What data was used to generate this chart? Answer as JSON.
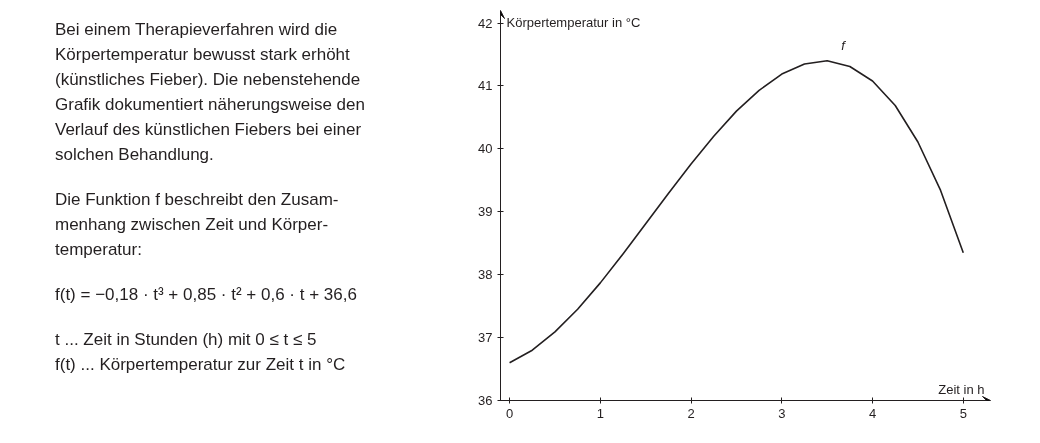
{
  "chart_data": {
    "type": "line",
    "xlabel": "Zeit in h",
    "ylabel": "Körpertemperatur in °C",
    "x": [
      0,
      0.25,
      0.5,
      0.75,
      1,
      1.25,
      1.5,
      1.75,
      2,
      2.25,
      2.5,
      2.75,
      3,
      3.25,
      3.5,
      3.75,
      4,
      4.25,
      4.5,
      4.75,
      5
    ],
    "series": [
      {
        "name": "f",
        "color": "#231f20",
        "values": [
          36.6,
          36.8,
          37.09,
          37.45,
          37.87,
          38.33,
          38.81,
          39.29,
          39.76,
          40.2,
          40.6,
          40.93,
          41.19,
          41.35,
          41.4,
          41.31,
          41.08,
          40.69,
          40.11,
          39.34,
          38.35
        ]
      }
    ],
    "xlim": [
      -0.1,
      5.3
    ],
    "ylim": [
      36,
      42.2
    ],
    "xticks": [
      0,
      1,
      2,
      3,
      4,
      5
    ],
    "yticks": [
      36,
      37,
      38,
      39,
      40,
      41,
      42
    ],
    "grid": false,
    "marker": "none",
    "line_style": "solid",
    "annotations": [
      "Bei einem Therapieverfahren wird die\nKörpertemperatur bewusst stark erhöht\n(künstliches Fieber). Die nebenstehende\nGrafik dokumentiert näherungsweise den\nVerlauf des künstlichen Fiebers bei einer\nsolchen Behandlung.",
      "Die Funktion f beschreibt den Zusam-\nmenhang zwischen Zeit und Körper-\ntemperatur:",
      "f(t) = −0,18 · t³ + 0,85 · t² + 0,6 · t + 36,6",
      "t ... Zeit in Stunden (h) mit 0 ≤ t ≤ 5\nf(t) ... Körpertemperatur zur Zeit t in °C"
    ]
  }
}
